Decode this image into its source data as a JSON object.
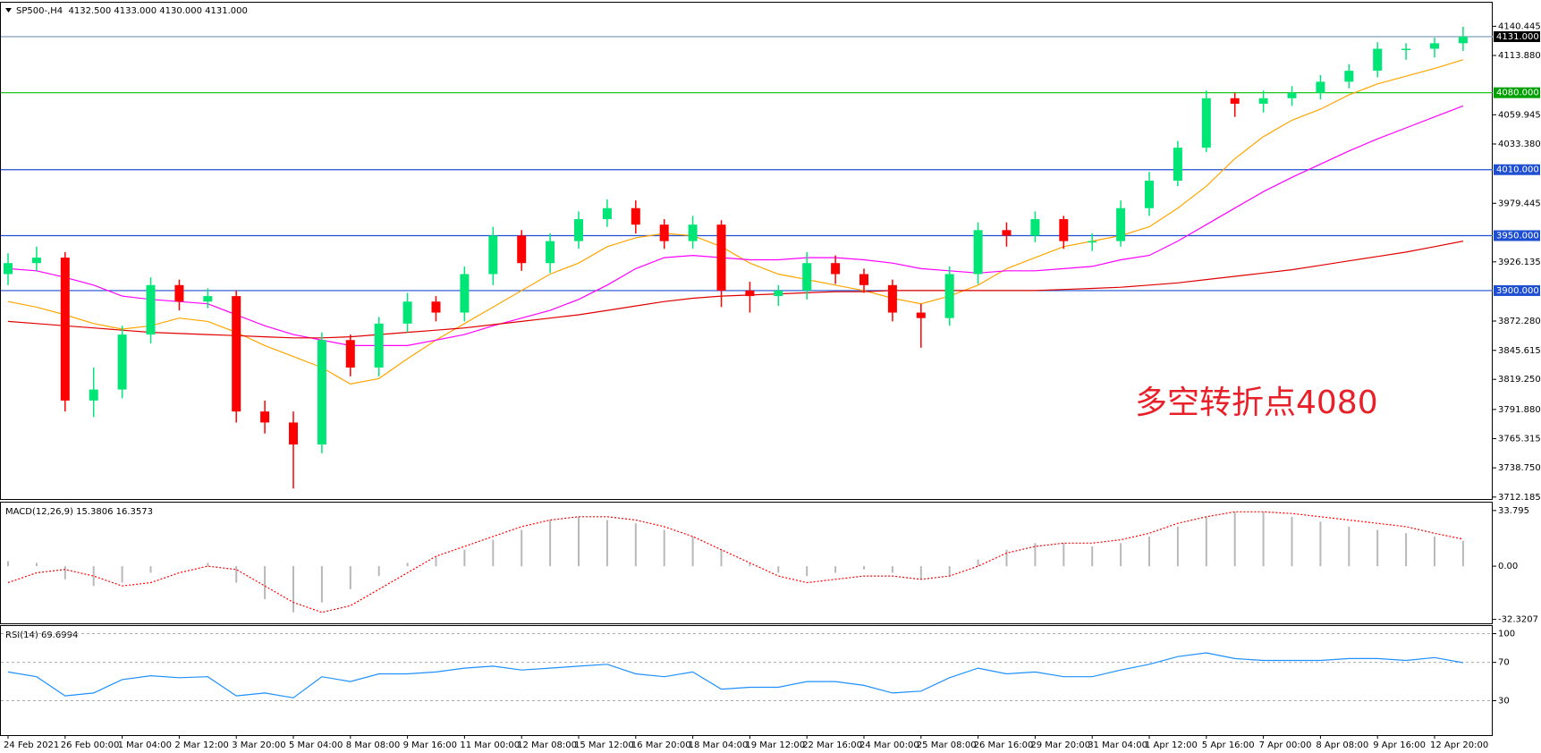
{
  "chart_data": [
    {
      "type": "candlestick",
      "title": "SP500-,H4  4132.500 4133.000 4130.000 4131.000",
      "categories": [
        "24 Feb 2021",
        null,
        "26 Feb 00:00",
        null,
        "1 Mar 04:00",
        null,
        "2 Mar 12:00",
        null,
        "3 Mar 20:00",
        null,
        "5 Mar 04:00",
        null,
        "8 Mar 08:00",
        null,
        "9 Mar 16:00",
        null,
        "11 Mar 00:00",
        null,
        "12 Mar 08:00",
        null,
        "15 Mar 12:00",
        null,
        "16 Mar 20:00",
        null,
        "18 Mar 04:00",
        null,
        "19 Mar 12:00",
        null,
        "22 Mar 16:00",
        null,
        "24 Mar 00:00",
        null,
        "25 Mar 08:00",
        null,
        "26 Mar 16:00",
        null,
        "29 Mar 20:00",
        null,
        "31 Mar 04:00",
        null,
        "1 Apr 12:00",
        null,
        "5 Apr 16:00",
        null,
        "7 Apr 00:00",
        null,
        "8 Apr 08:00",
        null,
        "9 Apr 16:00",
        null,
        "12 Apr 20:00",
        null
      ],
      "open": [
        3915,
        3925,
        3930,
        3800,
        3810,
        3860,
        3905,
        3890,
        3895,
        3790,
        3780,
        3760,
        3855,
        3830,
        3870,
        3890,
        3880,
        3915,
        3950,
        3925,
        3945,
        3965,
        3975,
        3960,
        3945,
        3960,
        3900,
        3895,
        3900,
        3925,
        3915,
        3905,
        3880,
        3875,
        3915,
        3955,
        3950,
        3965,
        3945,
        3945,
        3975,
        4000,
        4030,
        4075,
        4070,
        4075,
        4080,
        4090,
        4100,
        4120,
        4120,
        4125
      ],
      "high": [
        3934,
        3940,
        3935,
        3830,
        3868,
        3912,
        3910,
        3902,
        3900,
        3800,
        3790,
        3862,
        3860,
        3876,
        3898,
        3895,
        3922,
        3958,
        3955,
        3952,
        3972,
        3983,
        3982,
        3965,
        3968,
        3964,
        3908,
        3905,
        3935,
        3932,
        3920,
        3910,
        3888,
        3922,
        3962,
        3962,
        3972,
        3968,
        3952,
        3982,
        4008,
        4036,
        4082,
        4080,
        4082,
        4086,
        4096,
        4106,
        4126,
        4125,
        4130,
        4140
      ],
      "low": [
        3905,
        3918,
        3790,
        3785,
        3802,
        3852,
        3882,
        3884,
        3780,
        3770,
        3720,
        3752,
        3822,
        3822,
        3862,
        3872,
        3872,
        3905,
        3918,
        3916,
        3938,
        3958,
        3952,
        3938,
        3938,
        3885,
        3880,
        3886,
        3892,
        3906,
        3898,
        3872,
        3848,
        3868,
        3906,
        3940,
        3944,
        3938,
        3936,
        3940,
        3968,
        3995,
        4026,
        4058,
        4062,
        4068,
        4074,
        4084,
        4094,
        4110,
        4112,
        4118
      ],
      "close": [
        3925,
        3930,
        3800,
        3810,
        3860,
        3905,
        3890,
        3895,
        3790,
        3780,
        3760,
        3855,
        3830,
        3870,
        3890,
        3880,
        3915,
        3950,
        3925,
        3945,
        3965,
        3975,
        3960,
        3945,
        3960,
        3900,
        3895,
        3900,
        3925,
        3915,
        3905,
        3880,
        3875,
        3915,
        3955,
        3950,
        3965,
        3945,
        3945,
        3975,
        4000,
        4030,
        4075,
        4070,
        4075,
        4080,
        4090,
        4100,
        4120,
        4120,
        4125,
        4131
      ],
      "up_color": "#00e676",
      "down_color": "#ff0000",
      "series": [
        {
          "color": "#ffa500",
          "values": [
            3890,
            3885,
            3878,
            3870,
            3865,
            3868,
            3875,
            3872,
            3862,
            3850,
            3840,
            3830,
            3815,
            3820,
            3838,
            3855,
            3870,
            3885,
            3900,
            3915,
            3925,
            3940,
            3948,
            3952,
            3950,
            3940,
            3925,
            3915,
            3910,
            3905,
            3900,
            3893,
            3888,
            3895,
            3905,
            3920,
            3930,
            3940,
            3945,
            3950,
            3958,
            3975,
            3995,
            4020,
            4040,
            4055,
            4065,
            4078,
            4088,
            4095,
            4102,
            4110
          ]
        },
        {
          "color": "#ff00ff",
          "values": [
            3920,
            3918,
            3912,
            3905,
            3895,
            3892,
            3890,
            3888,
            3878,
            3868,
            3860,
            3855,
            3850,
            3850,
            3850,
            3855,
            3860,
            3868,
            3875,
            3882,
            3892,
            3905,
            3920,
            3930,
            3932,
            3930,
            3928,
            3928,
            3930,
            3930,
            3928,
            3925,
            3920,
            3918,
            3916,
            3918,
            3918,
            3920,
            3922,
            3928,
            3932,
            3945,
            3960,
            3975,
            3990,
            4003,
            4015,
            4027,
            4038,
            4048,
            4058,
            4068
          ]
        },
        {
          "color": "#e00000",
          "values": [
            3872,
            3870,
            3868,
            3866,
            3864,
            3862,
            3861,
            3860,
            3859,
            3858,
            3857,
            3857,
            3858,
            3860,
            3862,
            3864,
            3866,
            3869,
            3872,
            3875,
            3878,
            3882,
            3886,
            3890,
            3893,
            3895,
            3896,
            3897,
            3898,
            3899,
            3899,
            3900,
            3900,
            3900,
            3900,
            3900,
            3900,
            3901,
            3902,
            3903,
            3905,
            3907,
            3910,
            3913,
            3916,
            3919,
            3923,
            3927,
            3931,
            3935,
            3940,
            3945
          ]
        }
      ],
      "ylim": [
        3710.4,
        4161.9
      ],
      "yticks": [
        {
          "value": 4140.445,
          "label": "4140.445"
        },
        {
          "value": 4113.88,
          "label": "4113.880"
        },
        4059.945,
        {
          "value": 4033.38,
          "label": "4033.380"
        },
        3979.445,
        3926.135,
        {
          "value": 3872.28,
          "label": "3872.280"
        },
        3845.615,
        {
          "value": 3819.25,
          "label": "3819.250"
        },
        {
          "value": 3791.88,
          "label": "3791.880"
        },
        3765.315,
        {
          "value": 3738.75,
          "label": "3738.750"
        },
        3712.185
      ],
      "levels": [
        {
          "value": 4131,
          "label": "4131.000",
          "color": "#7f9db9",
          "box": "#000000"
        },
        {
          "value": 4080,
          "label": "4080.000",
          "color": "#00c000",
          "box": "#00a000"
        },
        {
          "value": 4010,
          "label": "4010.000",
          "color": "#1f4fd1",
          "box": "#1f4fd1"
        },
        {
          "value": 3950,
          "label": "3950.000",
          "color": "#1f4fd1",
          "box": "#1f4fd1"
        },
        {
          "value": 3900,
          "label": "3900.000",
          "color": "#1f4fd1",
          "box": "#1f4fd1"
        }
      ],
      "annotation": {
        "text": "多空转折点4080",
        "color": "#e8202a"
      }
    },
    {
      "type": "macd",
      "title": "MACD(12,26,9) 15.3806 16.3573",
      "histogram": [
        3,
        2,
        -8,
        -12,
        -10,
        -4,
        0,
        2,
        -10,
        -20,
        -28,
        -22,
        -14,
        -6,
        2,
        6,
        10,
        16,
        22,
        28,
        30,
        28,
        26,
        22,
        18,
        10,
        2,
        -4,
        -6,
        -4,
        -2,
        -4,
        -8,
        -6,
        4,
        10,
        14,
        14,
        12,
        14,
        18,
        24,
        30,
        33,
        33,
        30,
        27,
        24,
        22,
        20,
        18,
        15.4
      ],
      "signal": [
        -10,
        -4,
        -2,
        -6,
        -12,
        -10,
        -4,
        0,
        -2,
        -12,
        -22,
        -28,
        -24,
        -14,
        -4,
        6,
        12,
        18,
        24,
        28,
        30,
        30,
        28,
        24,
        18,
        10,
        2,
        -6,
        -10,
        -8,
        -6,
        -6,
        -8,
        -6,
        0,
        8,
        12,
        14,
        14,
        16,
        20,
        26,
        30,
        33,
        33,
        32,
        30,
        28,
        26,
        24,
        20,
        16.4
      ],
      "histogram_color": "#b8b8b8",
      "signal_color": "#ff0000",
      "ylim": [
        -34.7,
        38.6
      ],
      "yticks": [
        33.795,
        {
          "value": 0,
          "label": "0.00"
        },
        -32.3207
      ]
    },
    {
      "type": "line",
      "title": "RSI(14) 69.6994",
      "values": [
        60,
        55,
        35,
        38,
        52,
        56,
        54,
        55,
        35,
        38,
        33,
        55,
        50,
        58,
        58,
        60,
        64,
        66,
        62,
        64,
        66,
        68,
        58,
        55,
        60,
        42,
        44,
        44,
        50,
        50,
        46,
        38,
        40,
        54,
        64,
        58,
        60,
        55,
        55,
        62,
        68,
        76,
        80,
        74,
        72,
        72,
        72,
        74,
        74,
        72,
        75,
        69.7
      ],
      "color": "#1e90ff",
      "ylim": [
        -6,
        108
      ],
      "yticks": [
        100,
        70,
        30
      ],
      "grid": true
    }
  ]
}
